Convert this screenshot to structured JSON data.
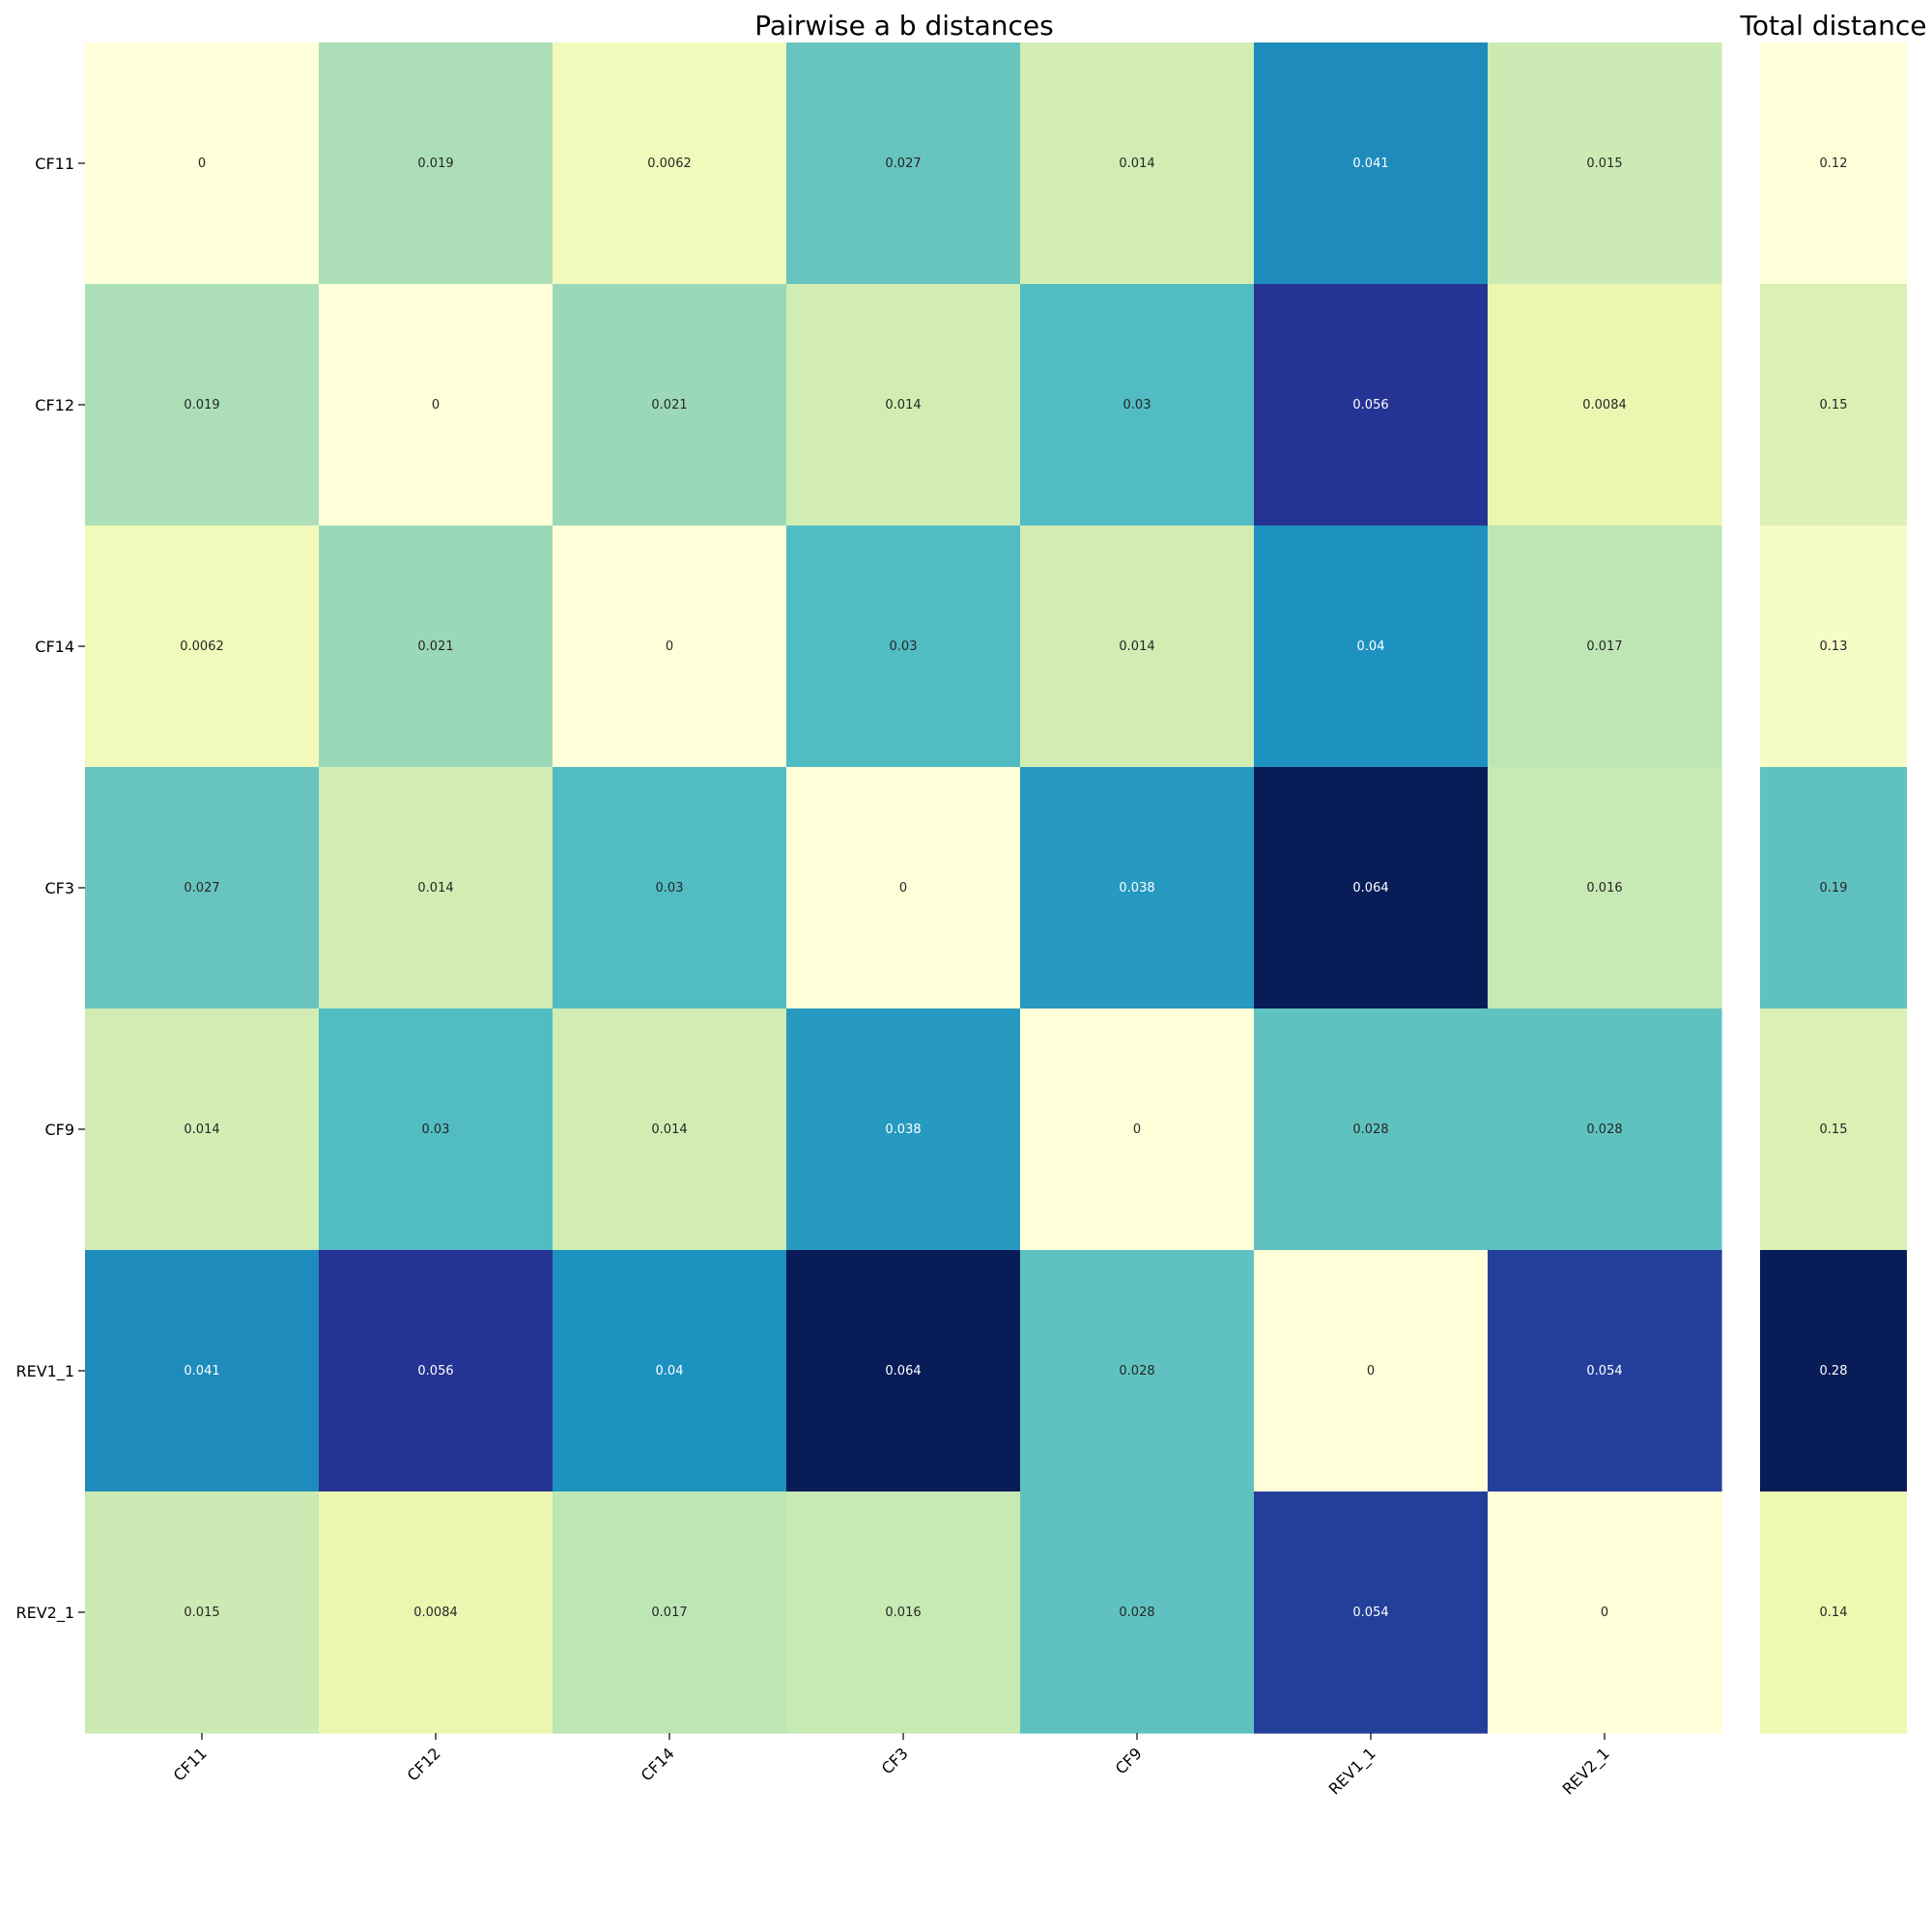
{
  "chart_data": [
    {
      "type": "heatmap",
      "title": "Pairwise a b distances",
      "xlabel": "",
      "ylabel": "",
      "x_categories": [
        "CF11",
        "CF12",
        "CF14",
        "CF3",
        "CF9",
        "REV1_1",
        "REV2_1"
      ],
      "y_categories": [
        "CF11",
        "CF12",
        "CF14",
        "CF3",
        "CF9",
        "REV1_1",
        "REV2_1"
      ],
      "values": [
        [
          0,
          0.019,
          0.0062,
          0.027,
          0.014,
          0.041,
          0.015
        ],
        [
          0.019,
          0,
          0.021,
          0.014,
          0.03,
          0.056,
          0.0084
        ],
        [
          0.0062,
          0.021,
          0,
          0.03,
          0.014,
          0.04,
          0.017
        ],
        [
          0.027,
          0.014,
          0.03,
          0,
          0.038,
          0.064,
          0.016
        ],
        [
          0.014,
          0.03,
          0.014,
          0.038,
          0,
          0.028,
          0.028
        ],
        [
          0.041,
          0.056,
          0.04,
          0.064,
          0.028,
          0,
          0.054
        ],
        [
          0.015,
          0.0084,
          0.017,
          0.016,
          0.028,
          0.054,
          0
        ]
      ],
      "value_range": [
        0,
        0.064
      ],
      "colormap": "YlGnBu",
      "annotated": true,
      "grid": false
    },
    {
      "type": "heatmap",
      "title": "Total distance",
      "y_categories": [
        "CF11",
        "CF12",
        "CF14",
        "CF3",
        "CF9",
        "REV1_1",
        "REV2_1"
      ],
      "values": [
        0.12,
        0.15,
        0.13,
        0.19,
        0.15,
        0.28,
        0.14
      ],
      "value_range": [
        0.12,
        0.28
      ],
      "colormap": "YlGnBu",
      "annotated": true,
      "grid": false
    }
  ]
}
